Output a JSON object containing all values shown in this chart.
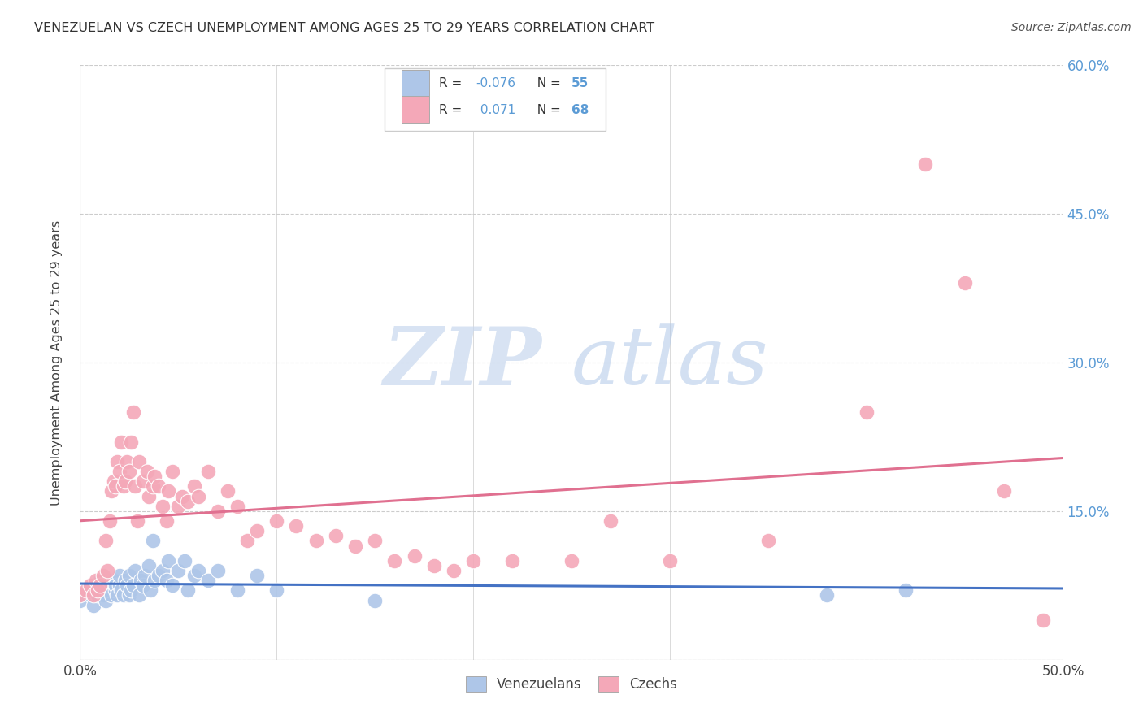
{
  "title": "VENEZUELAN VS CZECH UNEMPLOYMENT AMONG AGES 25 TO 29 YEARS CORRELATION CHART",
  "source": "Source: ZipAtlas.com",
  "ylabel": "Unemployment Among Ages 25 to 29 years",
  "xlim": [
    0.0,
    0.5
  ],
  "ylim": [
    0.0,
    0.6
  ],
  "grid_color": "#cccccc",
  "background_color": "#ffffff",
  "venezuelan_color": "#aec6e8",
  "czech_color": "#f4a8b8",
  "venezuelan_line_color": "#4472c4",
  "czech_line_color": "#e07090",
  "venezuelan_R": -0.076,
  "venezuelan_N": 55,
  "czech_R": 0.071,
  "czech_N": 68,
  "legend_label_venezuelans": "Venezuelans",
  "legend_label_czechs": "Czechs",
  "watermark_zip": "ZIP",
  "watermark_atlas": "atlas",
  "right_tick_color": "#5b9bd5",
  "venezuelan_x": [
    0.0,
    0.005,
    0.007,
    0.008,
    0.009,
    0.01,
    0.01,
    0.01,
    0.012,
    0.013,
    0.014,
    0.015,
    0.015,
    0.016,
    0.017,
    0.018,
    0.018,
    0.019,
    0.02,
    0.02,
    0.021,
    0.022,
    0.023,
    0.024,
    0.025,
    0.025,
    0.026,
    0.027,
    0.028,
    0.03,
    0.031,
    0.032,
    0.033,
    0.035,
    0.036,
    0.037,
    0.038,
    0.04,
    0.042,
    0.044,
    0.045,
    0.047,
    0.05,
    0.053,
    0.055,
    0.058,
    0.06,
    0.065,
    0.07,
    0.08,
    0.09,
    0.1,
    0.15,
    0.38,
    0.42
  ],
  "venezuelan_y": [
    0.06,
    0.065,
    0.055,
    0.07,
    0.065,
    0.07,
    0.075,
    0.08,
    0.065,
    0.06,
    0.075,
    0.07,
    0.075,
    0.065,
    0.08,
    0.07,
    0.075,
    0.065,
    0.075,
    0.085,
    0.07,
    0.065,
    0.08,
    0.075,
    0.065,
    0.085,
    0.07,
    0.075,
    0.09,
    0.065,
    0.08,
    0.075,
    0.085,
    0.095,
    0.07,
    0.12,
    0.08,
    0.085,
    0.09,
    0.08,
    0.1,
    0.075,
    0.09,
    0.1,
    0.07,
    0.085,
    0.09,
    0.08,
    0.09,
    0.07,
    0.085,
    0.07,
    0.06,
    0.065,
    0.07
  ],
  "czech_x": [
    0.0,
    0.003,
    0.005,
    0.007,
    0.008,
    0.009,
    0.01,
    0.012,
    0.013,
    0.014,
    0.015,
    0.016,
    0.017,
    0.018,
    0.019,
    0.02,
    0.021,
    0.022,
    0.023,
    0.024,
    0.025,
    0.026,
    0.027,
    0.028,
    0.029,
    0.03,
    0.032,
    0.034,
    0.035,
    0.037,
    0.038,
    0.04,
    0.042,
    0.044,
    0.045,
    0.047,
    0.05,
    0.052,
    0.055,
    0.058,
    0.06,
    0.065,
    0.07,
    0.075,
    0.08,
    0.085,
    0.09,
    0.1,
    0.11,
    0.12,
    0.13,
    0.14,
    0.15,
    0.16,
    0.17,
    0.18,
    0.19,
    0.2,
    0.22,
    0.25,
    0.27,
    0.3,
    0.35,
    0.4,
    0.43,
    0.45,
    0.47,
    0.49
  ],
  "czech_y": [
    0.065,
    0.07,
    0.075,
    0.065,
    0.08,
    0.07,
    0.075,
    0.085,
    0.12,
    0.09,
    0.14,
    0.17,
    0.18,
    0.175,
    0.2,
    0.19,
    0.22,
    0.175,
    0.18,
    0.2,
    0.19,
    0.22,
    0.25,
    0.175,
    0.14,
    0.2,
    0.18,
    0.19,
    0.165,
    0.175,
    0.185,
    0.175,
    0.155,
    0.14,
    0.17,
    0.19,
    0.155,
    0.165,
    0.16,
    0.175,
    0.165,
    0.19,
    0.15,
    0.17,
    0.155,
    0.12,
    0.13,
    0.14,
    0.135,
    0.12,
    0.125,
    0.115,
    0.12,
    0.1,
    0.105,
    0.095,
    0.09,
    0.1,
    0.1,
    0.1,
    0.14,
    0.1,
    0.12,
    0.25,
    0.5,
    0.38,
    0.17,
    0.04
  ]
}
